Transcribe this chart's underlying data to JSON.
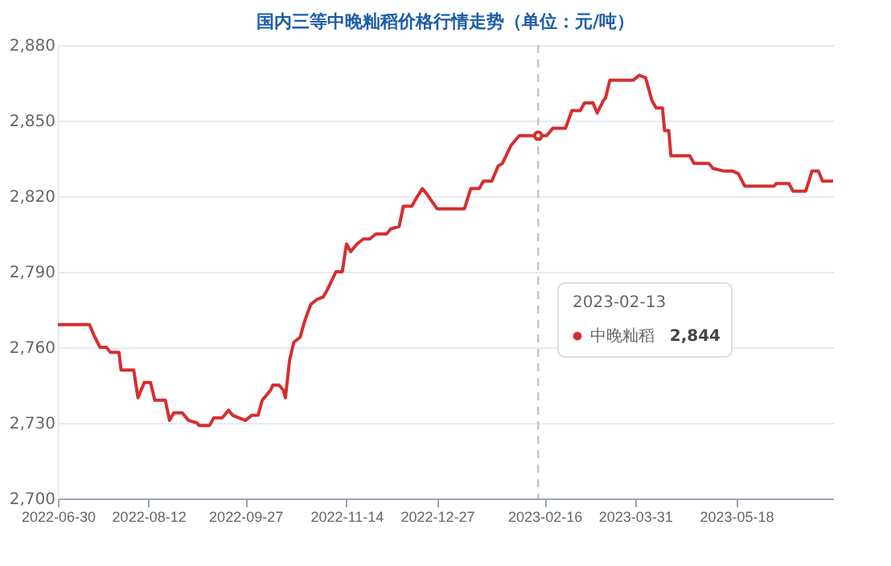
{
  "chart_data": {
    "type": "line",
    "title": "国内三等中晚籼稻价格行情走势（单位：元/吨）",
    "x": [
      "2022-06-30",
      "2022-07-15",
      "2022-07-17",
      "2022-07-20",
      "2022-07-23",
      "2022-07-25",
      "2022-07-29",
      "2022-07-30",
      "2022-08-05",
      "2022-08-07",
      "2022-08-10",
      "2022-08-13",
      "2022-08-15",
      "2022-08-20",
      "2022-08-22",
      "2022-08-24",
      "2022-08-28",
      "2022-08-31",
      "2022-09-04",
      "2022-09-05",
      "2022-09-10",
      "2022-09-12",
      "2022-09-16",
      "2022-09-19",
      "2022-09-21",
      "2022-09-27",
      "2022-09-30",
      "2022-10-03",
      "2022-10-05",
      "2022-10-09",
      "2022-10-10",
      "2022-10-13",
      "2022-10-15",
      "2022-10-16",
      "2022-10-18",
      "2022-10-20",
      "2022-10-23",
      "2022-10-25",
      "2022-10-28",
      "2022-10-31",
      "2022-11-03",
      "2022-11-05",
      "2022-11-09",
      "2022-11-12",
      "2022-11-14",
      "2022-11-16",
      "2022-11-19",
      "2022-11-22",
      "2022-11-25",
      "2022-11-28",
      "2022-12-03",
      "2022-12-05",
      "2022-12-09",
      "2022-12-11",
      "2022-12-15",
      "2022-12-17",
      "2022-12-20",
      "2022-12-22",
      "2022-12-27",
      "2023-01-01",
      "2023-01-06",
      "2023-01-09",
      "2023-01-12",
      "2023-01-16",
      "2023-01-18",
      "2023-01-22",
      "2023-01-25",
      "2023-01-27",
      "2023-01-31",
      "2023-02-04",
      "2023-02-13",
      "2023-02-17",
      "2023-02-20",
      "2023-02-26",
      "2023-03-01",
      "2023-03-05",
      "2023-03-07",
      "2023-03-11",
      "2023-03-13",
      "2023-03-16",
      "2023-03-17",
      "2023-03-19",
      "2023-03-30",
      "2023-04-02",
      "2023-04-05",
      "2023-04-08",
      "2023-04-10",
      "2023-04-13",
      "2023-04-14",
      "2023-04-16",
      "2023-04-17",
      "2023-04-26",
      "2023-04-28",
      "2023-05-05",
      "2023-05-07",
      "2023-05-12",
      "2023-05-16",
      "2023-05-19",
      "2023-05-22",
      "2023-06-05",
      "2023-06-06",
      "2023-06-12",
      "2023-06-14",
      "2023-06-20",
      "2023-06-23",
      "2023-06-26",
      "2023-06-28",
      "2023-07-03"
    ],
    "series": [
      {
        "name": "中晚籼稻",
        "color": "#d42f2f",
        "values": [
          2769,
          2769,
          2765,
          2760,
          2760,
          2758,
          2758,
          2751,
          2751,
          2740,
          2746,
          2746,
          2739,
          2739,
          2731,
          2734,
          2734,
          2731,
          2730,
          2729,
          2729,
          2732,
          2732,
          2735,
          2733,
          2731,
          2733,
          2733,
          2739,
          2743,
          2745,
          2745,
          2743,
          2740,
          2755,
          2762,
          2764,
          2770,
          2777,
          2779,
          2780,
          2783,
          2790,
          2790,
          2801,
          2798,
          2801,
          2803,
          2803,
          2805,
          2805,
          2807,
          2808,
          2816,
          2816,
          2819,
          2823,
          2821,
          2815,
          2815,
          2815,
          2815,
          2823,
          2823,
          2826,
          2826,
          2832,
          2833,
          2840,
          2844,
          2844,
          2844,
          2847,
          2847,
          2854,
          2854,
          2857,
          2857,
          2853,
          2858,
          2859,
          2866,
          2866,
          2868,
          2867,
          2858,
          2855,
          2855,
          2846,
          2846,
          2836,
          2836,
          2833,
          2833,
          2831,
          2830,
          2830,
          2829,
          2824,
          2824,
          2825,
          2825,
          2822,
          2822,
          2830,
          2830,
          2826,
          2826
        ]
      }
    ],
    "xlim": [
      "2022-06-30",
      "2023-07-03"
    ],
    "xticks": [
      "2022-06-30",
      "2022-08-12",
      "2022-09-27",
      "2022-11-14",
      "2022-12-27",
      "2023-02-16",
      "2023-03-31",
      "2023-05-18"
    ],
    "ylim": [
      2700,
      2880
    ],
    "yticks": [
      {
        "value": 2700,
        "label": "2,700"
      },
      {
        "value": 2730,
        "label": "2,730"
      },
      {
        "value": 2760,
        "label": "2,760"
      },
      {
        "value": 2790,
        "label": "2,790"
      },
      {
        "value": 2820,
        "label": "2,820"
      },
      {
        "value": 2850,
        "label": "2,850"
      },
      {
        "value": 2880,
        "label": "2,880"
      }
    ],
    "grid": "y",
    "legend": "right",
    "marker": "none",
    "line_style": "solid",
    "ref_lines": [
      {
        "axis": "x",
        "value": "2023-02-13",
        "label": null,
        "color": "#bbbbbb",
        "line_style": "dashed"
      }
    ],
    "annotations": [
      "2023-02-13",
      "2,844"
    ]
  }
}
